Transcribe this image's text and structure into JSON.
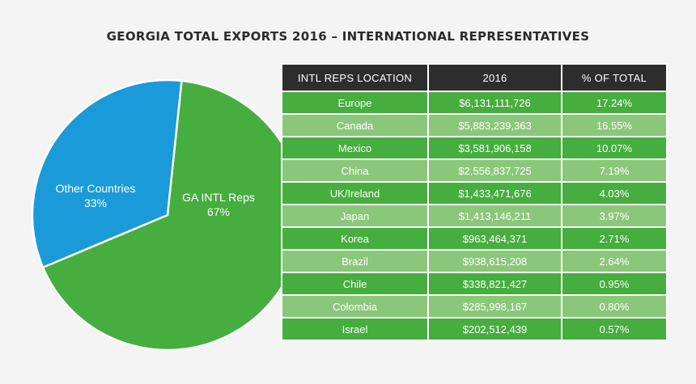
{
  "chart_data": [
    {
      "type": "pie",
      "title": "GEORGIA TOTAL EXPORTS 2016 – INTERNATIONAL REPRESENTATIVES",
      "slices": [
        {
          "label": "GA INTL Reps",
          "pct_label": "67%",
          "value": 67,
          "color": "#46ad3f"
        },
        {
          "label": "Other Countries",
          "pct_label": "33%",
          "value": 33,
          "color": "#1a9ad9"
        }
      ]
    },
    {
      "type": "table",
      "columns": [
        "INTL REPS LOCATION",
        "2016",
        "% OF TOTAL"
      ],
      "rows": [
        [
          "Europe",
          "$6,131,111,726",
          "17.24%"
        ],
        [
          "Canada",
          "$5,883,239,363",
          "16.55%"
        ],
        [
          "Mexico",
          "$3,581,906,158",
          "10.07%"
        ],
        [
          "China",
          "$2,556,837,725",
          "7.19%"
        ],
        [
          "UK/Ireland",
          "$1,433,471,676",
          "4.03%"
        ],
        [
          "Japan",
          "$1,413,146,211",
          "3.97%"
        ],
        [
          "Korea",
          "$963,464,371",
          "2.71%"
        ],
        [
          "Brazil",
          "$938,615,208",
          "2.64%"
        ],
        [
          "Chile",
          "$338,821,427",
          "0.95%"
        ],
        [
          "Colombia",
          "$285,998,167",
          "0.80%"
        ],
        [
          "Israel",
          "$202,512,439",
          "0.57%"
        ]
      ]
    }
  ]
}
